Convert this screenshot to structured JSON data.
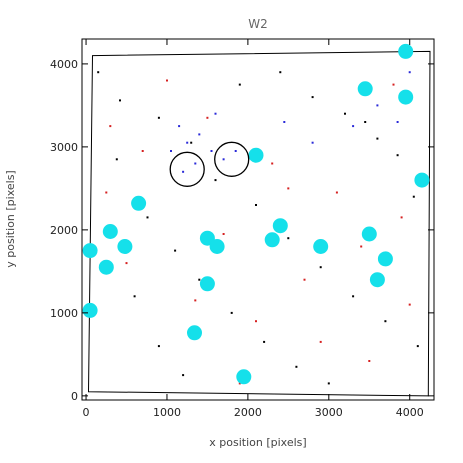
{
  "chart_data": {
    "type": "scatter",
    "title": "W2",
    "xlabel": "x position [pixels]",
    "ylabel": "y position [pixels]",
    "xlim": [
      -50,
      4300
    ],
    "ylim": [
      -50,
      4300
    ],
    "x_ticks": [
      0,
      1000,
      2000,
      3000,
      4000
    ],
    "y_ticks": [
      0,
      1000,
      2000,
      3000,
      4000
    ],
    "grid": false,
    "footprint": [
      [
        80,
        4100
      ],
      [
        4250,
        4150
      ],
      [
        4230,
        0
      ],
      [
        30,
        50
      ]
    ],
    "series": [
      {
        "color": "#000000",
        "marker": "dot",
        "points": [
          [
            150,
            3900
          ],
          [
            420,
            3560
          ],
          [
            900,
            3350
          ],
          [
            1300,
            3050
          ],
          [
            1600,
            2600
          ],
          [
            2100,
            2300
          ],
          [
            2500,
            1900
          ],
          [
            2900,
            1550
          ],
          [
            3300,
            1200
          ],
          [
            3700,
            900
          ],
          [
            4100,
            600
          ],
          [
            380,
            2850
          ],
          [
            760,
            2150
          ],
          [
            1100,
            1750
          ],
          [
            1400,
            1400
          ],
          [
            1800,
            1000
          ],
          [
            2200,
            650
          ],
          [
            2600,
            350
          ],
          [
            3000,
            150
          ],
          [
            3450,
            3300
          ],
          [
            3850,
            2900
          ],
          [
            4050,
            2400
          ],
          [
            600,
            1200
          ],
          [
            900,
            600
          ],
          [
            1200,
            250
          ],
          [
            2400,
            3900
          ],
          [
            2800,
            3600
          ],
          [
            3200,
            3400
          ],
          [
            3600,
            3100
          ],
          [
            1900,
            3750
          ]
        ]
      },
      {
        "color": "#d62020",
        "marker": "dot",
        "points": [
          [
            300,
            3250
          ],
          [
            700,
            2950
          ],
          [
            1500,
            3350
          ],
          [
            2300,
            2800
          ],
          [
            3100,
            2450
          ],
          [
            3900,
            2150
          ],
          [
            500,
            1600
          ],
          [
            1350,
            1150
          ],
          [
            2100,
            900
          ],
          [
            2900,
            650
          ],
          [
            3500,
            420
          ],
          [
            4000,
            1100
          ],
          [
            1700,
            1950
          ],
          [
            2700,
            1400
          ],
          [
            3400,
            1800
          ],
          [
            3800,
            3750
          ],
          [
            1000,
            3800
          ],
          [
            250,
            2450
          ],
          [
            2500,
            2500
          ],
          [
            1900,
            150
          ]
        ]
      },
      {
        "color": "#2a2ad8",
        "marker": "dot",
        "points": [
          [
            1150,
            3250
          ],
          [
            1250,
            3050
          ],
          [
            1400,
            3150
          ],
          [
            1550,
            2950
          ],
          [
            1700,
            2850
          ],
          [
            1850,
            2950
          ],
          [
            1200,
            2700
          ],
          [
            1350,
            2800
          ],
          [
            1050,
            2950
          ],
          [
            1600,
            3400
          ],
          [
            2450,
            3300
          ],
          [
            2800,
            3050
          ],
          [
            3300,
            3250
          ],
          [
            3600,
            3500
          ],
          [
            3850,
            3300
          ],
          [
            650,
            2350
          ],
          [
            1500,
            1900
          ],
          [
            2350,
            2050
          ],
          [
            2900,
            1800
          ],
          [
            3500,
            1950
          ],
          [
            3700,
            1650
          ],
          [
            3600,
            1400
          ],
          [
            2250,
            1850
          ],
          [
            4000,
            3900
          ]
        ]
      },
      {
        "color": "#15e0ea",
        "marker": "filled-circle",
        "points": [
          [
            3950,
            4150
          ],
          [
            3450,
            3700
          ],
          [
            3950,
            3600
          ],
          [
            2100,
            2900
          ],
          [
            4150,
            2600
          ],
          [
            650,
            2320
          ],
          [
            2400,
            2050
          ],
          [
            300,
            1980
          ],
          [
            1500,
            1900
          ],
          [
            3500,
            1950
          ],
          [
            2300,
            1880
          ],
          [
            1620,
            1800
          ],
          [
            2900,
            1800
          ],
          [
            480,
            1800
          ],
          [
            50,
            1750
          ],
          [
            3700,
            1650
          ],
          [
            250,
            1550
          ],
          [
            3600,
            1400
          ],
          [
            1500,
            1350
          ],
          [
            50,
            1030
          ],
          [
            1340,
            760
          ],
          [
            1950,
            230
          ]
        ]
      }
    ],
    "annotations": [
      {
        "shape": "open-circle",
        "x": 1250,
        "y": 2730,
        "radius": 210
      },
      {
        "shape": "open-circle",
        "x": 1800,
        "y": 2850,
        "radius": 210
      }
    ]
  }
}
